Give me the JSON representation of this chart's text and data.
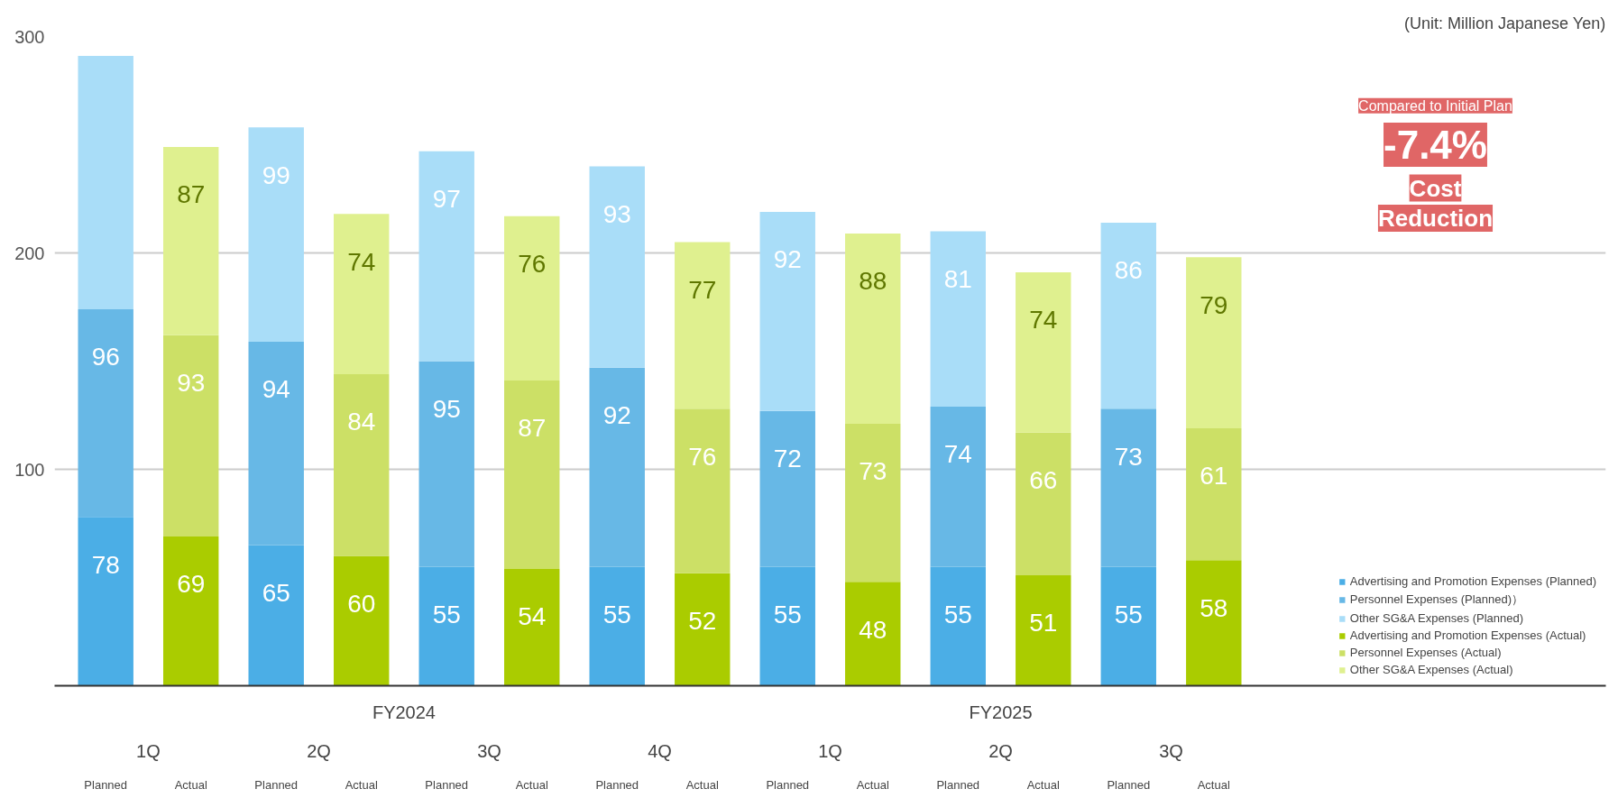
{
  "chart_data": {
    "type": "bar",
    "stacked": true,
    "categories": [
      "Planned",
      "Actual",
      "Planned",
      "Actual",
      "Planned",
      "Actual",
      "Planned",
      "Actual",
      "Planned",
      "Actual",
      "Planned",
      "Actual",
      "Planned",
      "Actual"
    ],
    "series": [
      {
        "name": "Advertising and Promotion Expenses (Planned)",
        "color": "#4baee6",
        "values": [
          78,
          null,
          65,
          null,
          55,
          null,
          55,
          null,
          55,
          null,
          55,
          null,
          55,
          null
        ],
        "value_labels": [
          "78",
          null,
          "65",
          null,
          "55",
          null,
          "55",
          null,
          "55",
          null,
          "55",
          null,
          "55",
          null
        ]
      },
      {
        "name": "Personnel Expenses (Planned)）",
        "color": "#67b8e6",
        "values": [
          96,
          null,
          94,
          null,
          95,
          null,
          92,
          null,
          72,
          null,
          74,
          null,
          73,
          null
        ],
        "value_labels": [
          "96",
          null,
          "94",
          null,
          "95",
          null,
          "92",
          null,
          "72",
          null,
          "74",
          null,
          "73",
          null
        ]
      },
      {
        "name": "Other SG&A Expenses (Planned)",
        "color": "#a9ddf8",
        "values": [
          117,
          null,
          99,
          null,
          97,
          null,
          93,
          null,
          92,
          null,
          81,
          null,
          86,
          null
        ],
        "value_labels": [
          null,
          null,
          "99",
          null,
          "97",
          null,
          "93",
          null,
          "92",
          null,
          "81",
          null,
          "86",
          null
        ]
      },
      {
        "name": "Advertising and Promotion Expenses (Actual)",
        "color": "#aacc00",
        "values": [
          null,
          69,
          null,
          60,
          null,
          54,
          null,
          52,
          null,
          48,
          null,
          51,
          null,
          58
        ],
        "value_labels": [
          null,
          "69",
          null,
          "60",
          null,
          "54",
          null,
          "52",
          null,
          "48",
          null,
          "51",
          null,
          "58"
        ]
      },
      {
        "name": "Personnel Expenses (Actual)",
        "color": "#cce066",
        "values": [
          null,
          93,
          null,
          84,
          null,
          87,
          null,
          76,
          null,
          73,
          null,
          66,
          null,
          61
        ],
        "value_labels": [
          null,
          "93",
          null,
          "84",
          null,
          "87",
          null,
          "76",
          null,
          "73",
          null,
          "66",
          null,
          "61"
        ]
      },
      {
        "name": "Other SG&A Expenses (Actual)",
        "color": "#dff08f",
        "values": [
          null,
          87,
          null,
          74,
          null,
          76,
          null,
          77,
          null,
          88,
          null,
          74,
          null,
          79
        ],
        "value_labels": [
          null,
          "87",
          null,
          "74",
          null,
          "76",
          null,
          "77",
          null,
          "88",
          null,
          "74",
          null,
          "79"
        ]
      }
    ],
    "ylim": [
      0,
      300
    ],
    "yticks": [
      100,
      200,
      300
    ],
    "grid": "y",
    "legend": "right",
    "annotations": [
      "(Unit: Million Japanese Yen)",
      "Compared to Initial Plan",
      "-7.4%",
      "Cost",
      "Reduction",
      "FY2024",
      "FY2025",
      "1Q",
      "2Q",
      "3Q",
      "4Q",
      "1Q",
      "2Q",
      "3Q"
    ]
  }
}
